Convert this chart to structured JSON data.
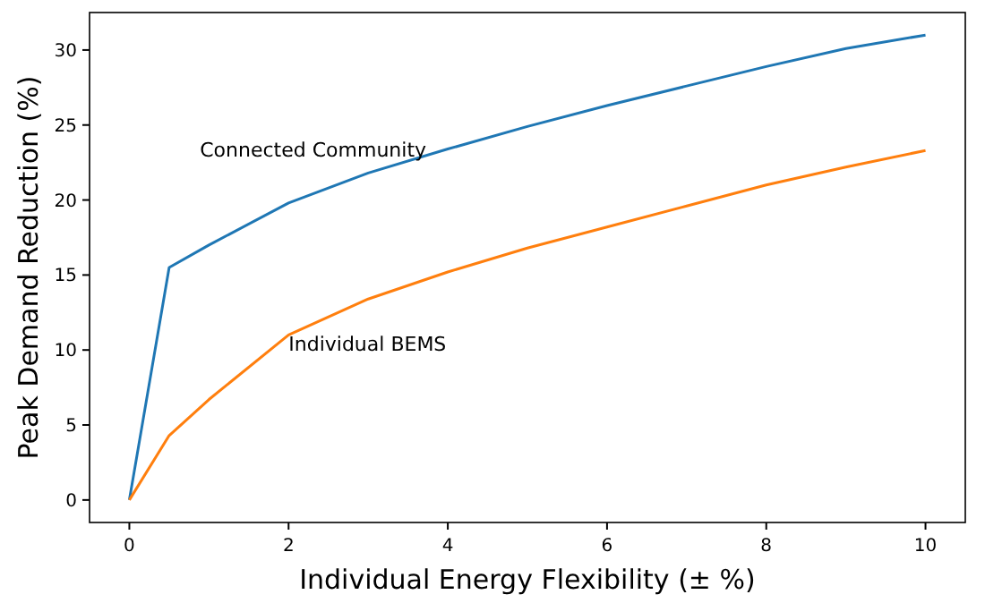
{
  "chart_data": {
    "type": "line",
    "xlabel": "Individual Energy Flexibility (± %)",
    "ylabel": "Peak Demand Reduction (%)",
    "x": [
      0,
      0.5,
      1,
      2,
      3,
      4,
      5,
      6,
      7,
      8,
      9,
      10
    ],
    "series": [
      {
        "name": "Connected Community",
        "color": "#1f77b4",
        "values": [
          0,
          15.5,
          17,
          19.8,
          21.8,
          23.4,
          24.9,
          26.3,
          27.6,
          28.9,
          30.1,
          31
        ]
      },
      {
        "name": "Individual BEMS",
        "color": "#ff7f0e",
        "values": [
          0,
          4.3,
          6.7,
          11,
          13.4,
          15.2,
          16.8,
          18.2,
          19.6,
          21,
          22.2,
          23.3
        ]
      }
    ],
    "xlim": [
      -0.5,
      10.5
    ],
    "xticks": [
      0,
      2,
      4,
      6,
      8,
      10
    ],
    "ylim": [
      -1.5,
      32.5
    ],
    "yticks": [
      0,
      5,
      10,
      15,
      20,
      25,
      30
    ],
    "grid": false,
    "marker": "none",
    "line_style": "solid"
  }
}
